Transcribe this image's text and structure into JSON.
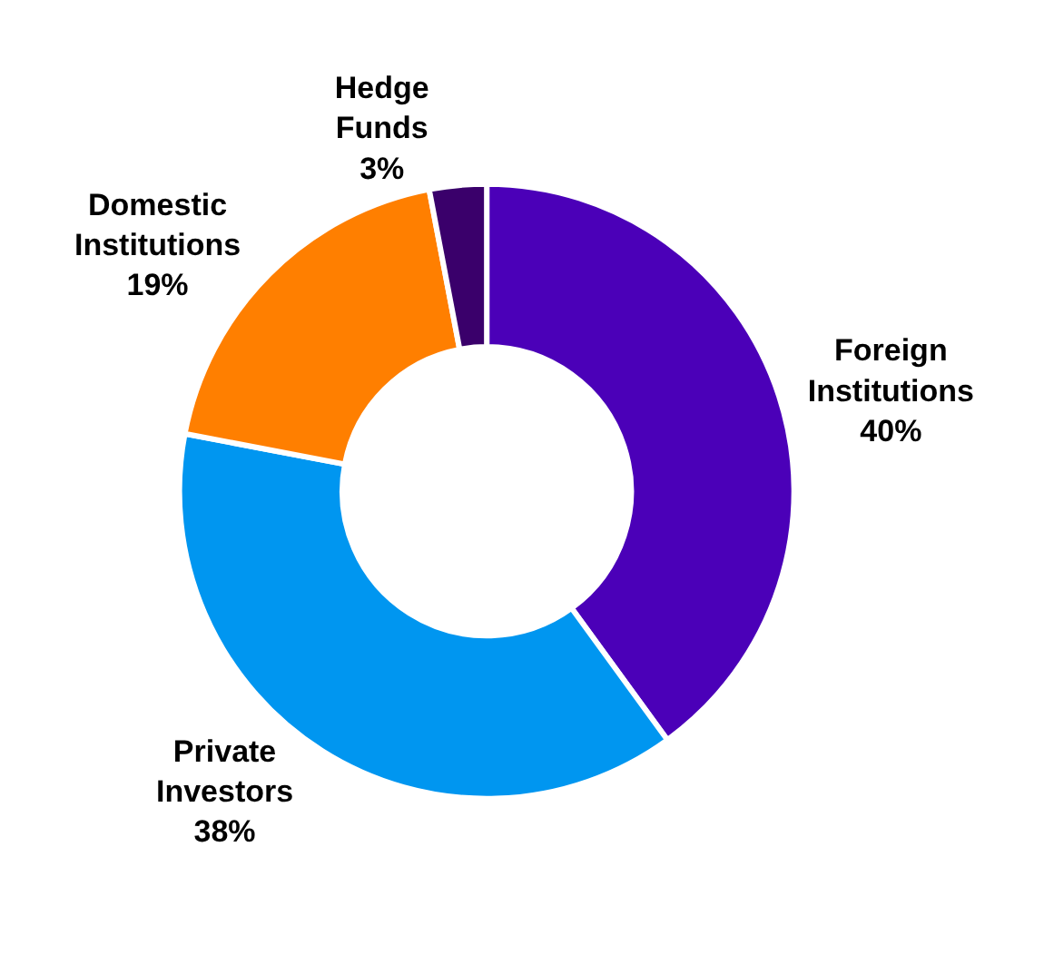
{
  "chart_data": {
    "type": "donut",
    "categories": [
      "Foreign Institutions",
      "Private Investors",
      "Domestic Institutions",
      "Hedge Funds"
    ],
    "values": [
      40,
      38,
      19,
      3
    ],
    "value_labels": [
      "40%",
      "38%",
      "19%",
      "3%"
    ],
    "colors": [
      "#4b00b8",
      "#0096f0",
      "#ff7f00",
      "#3a006b"
    ],
    "legend": false
  }
}
